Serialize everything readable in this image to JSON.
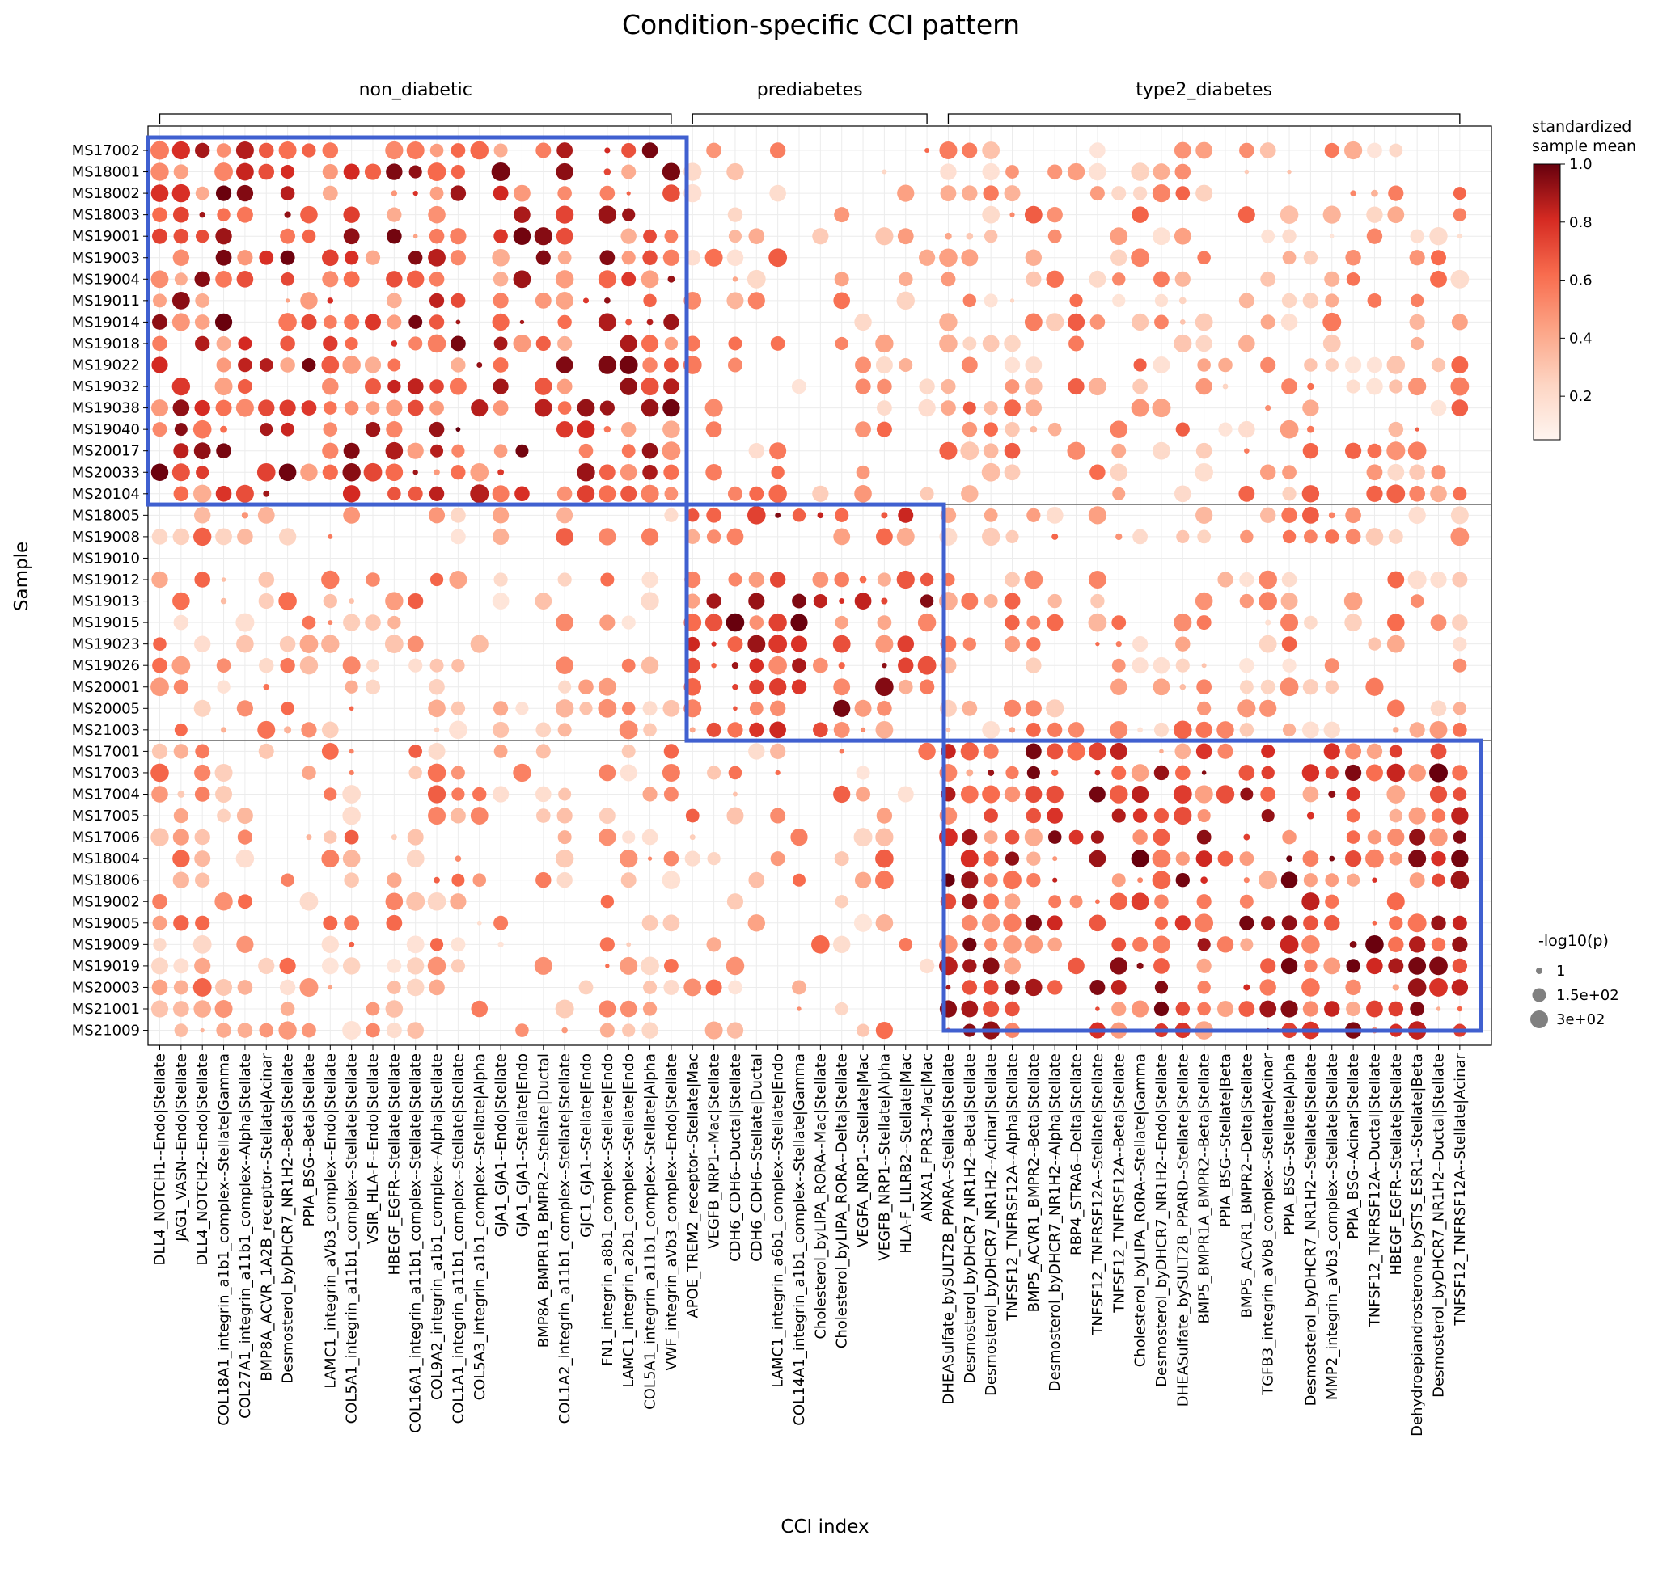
{
  "chart_data": {
    "type": "dotplot",
    "title": "Condition-specific CCI pattern",
    "xlabel": "CCI index",
    "ylabel": "Sample",
    "groups": [
      {
        "name": "non_diabetic",
        "col_start": 0,
        "col_end": 24,
        "row_start": 0,
        "row_end": 16
      },
      {
        "name": "prediabetes",
        "col_start": 25,
        "col_end": 36,
        "row_start": 17,
        "row_end": 26
      },
      {
        "name": "type2_diabetes",
        "col_start": 37,
        "col_end": 61,
        "row_start": 27,
        "row_end": 41
      }
    ],
    "samples": [
      "MS17002",
      "MS18001",
      "MS18002",
      "MS18003",
      "MS19001",
      "MS19003",
      "MS19004",
      "MS19011",
      "MS19014",
      "MS19018",
      "MS19022",
      "MS19032",
      "MS19038",
      "MS19040",
      "MS20017",
      "MS20033",
      "MS20104",
      "MS18005",
      "MS19008",
      "MS19010",
      "MS19012",
      "MS19013",
      "MS19015",
      "MS19023",
      "MS19026",
      "MS20001",
      "MS20005",
      "MS21003",
      "MS17001",
      "MS17003",
      "MS17004",
      "MS17005",
      "MS17006",
      "MS18004",
      "MS18006",
      "MS19002",
      "MS19005",
      "MS19009",
      "MS19019",
      "MS20003",
      "MS21001",
      "MS21009"
    ],
    "cci": [
      "DLL4_NOTCH1--Endo|Stellate",
      "JAG1_VASN--Endo|Stellate",
      "DLL4_NOTCH2--Endo|Stellate",
      "COL18A1_integrin_a1b1_complex--Stellate|Gamma",
      "COL27A1_integrin_a11b1_complex--Alpha|Stellate",
      "BMP8A_ACVR_1A2B_receptor--Stellate|Acinar",
      "Desmosterol_byDHCR7_NR1H2--Beta|Stellate",
      "PPIA_BSG--Beta|Stellate",
      "LAMC1_integrin_aVb3_complex--Endo|Stellate",
      "COL5A1_integrin_a11b1_complex--Stellate|Stellate",
      "VSIR_HLA-F--Endo|Stellate",
      "HBEGF_EGFR--Stellate|Stellate",
      "COL16A1_integrin_a11b1_complex--Stellate|Stellate",
      "COL9A2_integrin_a1b1_complex--Alpha|Stellate",
      "COL1A1_integrin_a11b1_complex--Stellate|Stellate",
      "COL5A3_integrin_a1b1_complex--Stellate|Alpha",
      "GJA1_GJA1--Endo|Stellate",
      "GJA1_GJA1--Stellate|Endo",
      "BMP8A_BMPR1B_BMPR2--Stellate|Ductal",
      "COL1A2_integrin_a11b1_complex--Stellate|Stellate",
      "GJC1_GJA1--Stellate|Endo",
      "FN1_integrin_a8b1_complex--Stellate|Endo",
      "LAMC1_integrin_a2b1_complex--Stellate|Endo",
      "COL5A1_integrin_a11b1_complex--Stellate|Alpha",
      "VWF_integrin_aVb3_complex--Endo|Stellate",
      "APOE_TREM2_receptor--Stellate|Mac",
      "VEGFB_NRP1--Mac|Stellate",
      "CDH6_CDH6--Ductal|Stellate",
      "CDH6_CDH6--Stellate|Ductal",
      "LAMC1_integrin_a6b1_complex--Stellate|Endo",
      "COL14A1_integrin_a1b1_complex--Stellate|Gamma",
      "Cholesterol_byLIPA_RORA--Mac|Stellate",
      "Cholesterol_byLIPA_RORA--Delta|Stellate",
      "VEGFA_NRP1--Stellate|Mac",
      "VEGFB_NRP1--Stellate|Alpha",
      "HLA-F_LILRB2--Stellate|Mac",
      "ANXA1_FPR3--Mac|Mac",
      "DHEASulfate_bySULT2B_PPARA--Stellate|Stellate",
      "Desmosterol_byDHCR7_NR1H2--Beta|Stellate",
      "Desmosterol_byDHCR7_NR1H2--Acinar|Stellate",
      "TNFSF12_TNFRSF12A--Alpha|Stellate",
      "BMP5_ACVR1_BMPR2--Beta|Stellate",
      "Desmosterol_byDHCR7_NR1H2--Alpha|Stellate",
      "RBP4_STRA6--Delta|Stellate",
      "TNFSF12_TNFRSF12A--Stellate|Stellate",
      "TNFSF12_TNFRSF12A--Beta|Stellate",
      "Cholesterol_byLIPA_RORA--Stellate|Gamma",
      "Desmosterol_byDHCR7_NR1H2--Endo|Stellate",
      "DHEASulfate_bySULT2B_PPARD--Stellate|Stellate",
      "BMP5_BMPR1A_BMPR2--Beta|Stellate",
      "PPIA_BSG--Stellate|Beta",
      "BMP5_ACVR1_BMPR2--Delta|Stellate",
      "TGFB3_integrin_aVb8_complex--Stellate|Acinar",
      "PPIA_BSG--Stellate|Alpha",
      "Desmosterol_byDHCR7_NR1H2--Stellate|Stellate",
      "MMP2_integrin_aVb3_complex--Stellate|Stellate",
      "PPIA_BSG--Acinar|Stellate",
      "TNFSF12_TNFRSF12A--Ductal|Stellate",
      "HBEGF_EGFR--Stellate|Stellate",
      "Dehydroepiandrosterone_bySTS_ESR1--Stellate|Beta",
      "Desmosterol_byDHCR7_NR1H2--Ductal|Stellate",
      "TNFSF12_TNFRSF12A--Stellate|Acinar"
    ],
    "colorbar": {
      "label_line1": "standardized",
      "label_line2": "sample mean",
      "ticks": [
        "1.0",
        "0.8",
        "0.6",
        "0.4",
        "0.2"
      ],
      "tick_values": [
        1.0,
        0.8,
        0.6,
        0.4,
        0.2
      ],
      "cmap": "Reds",
      "low": "#fff5f0",
      "high": "#67000d"
    },
    "size_legend": {
      "title": "-log10(p)",
      "entries": [
        "1",
        "1.5e+02",
        "3e+02"
      ]
    },
    "highlight_color": "#4060d0",
    "generator_note": "dot values approximate; drawn pattern reflects visible density per block",
    "rows": [
      {
        "v": [
          9,
          10,
          10,
          0,
          0,
          0,
          6,
          0,
          0,
          6,
          0,
          5,
          0,
          4,
          4,
          0,
          0,
          0,
          0,
          0,
          0,
          0,
          0,
          0,
          0,
          0,
          0,
          0,
          0,
          0,
          0,
          0,
          0,
          0,
          0,
          0,
          0,
          0,
          0,
          0,
          0,
          0,
          0,
          0,
          0,
          0,
          0,
          0,
          0,
          0,
          0,
          0,
          0,
          0,
          0,
          0,
          0,
          0,
          0,
          0,
          0,
          0
        ],
        "s": [
          3,
          3,
          3,
          0,
          0,
          0,
          3,
          0,
          0,
          3,
          0,
          3,
          0,
          3,
          3,
          0,
          0,
          0,
          0,
          0,
          0,
          0,
          0,
          0,
          0,
          0,
          0,
          0,
          0,
          0,
          0,
          0,
          0,
          0,
          0,
          0,
          0,
          0,
          0,
          0,
          0,
          0,
          0,
          0,
          0,
          0,
          0,
          0,
          0,
          0,
          0,
          0,
          0,
          0,
          0,
          0,
          0,
          0,
          0,
          0,
          0,
          0
        ]
      }
    ]
  }
}
